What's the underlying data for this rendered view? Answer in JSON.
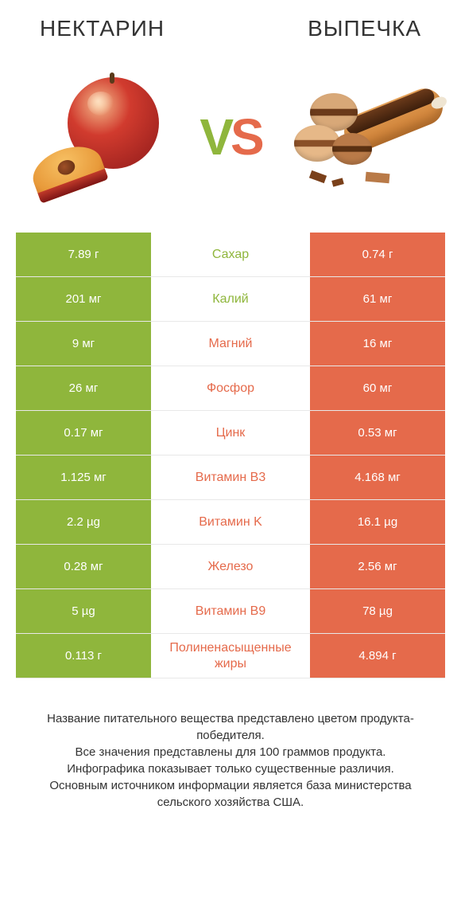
{
  "header": {
    "left_title": "НЕКТАРИН",
    "right_title": "ВЫПЕЧКА"
  },
  "vs_label": {
    "v": "V",
    "s": "S"
  },
  "colors": {
    "left_win": "#8fb63c",
    "right_win": "#e56a4b",
    "text_dark": "#333333",
    "background": "#ffffff",
    "row_border": "#e8e8e8"
  },
  "table": {
    "type": "comparison-table",
    "rows": [
      {
        "nutrient": "Сахар",
        "left": "7.89 г",
        "right": "0.74 г",
        "winner": "left"
      },
      {
        "nutrient": "Калий",
        "left": "201 мг",
        "right": "61 мг",
        "winner": "left"
      },
      {
        "nutrient": "Магний",
        "left": "9 мг",
        "right": "16 мг",
        "winner": "right"
      },
      {
        "nutrient": "Фосфор",
        "left": "26 мг",
        "right": "60 мг",
        "winner": "right"
      },
      {
        "nutrient": "Цинк",
        "left": "0.17 мг",
        "right": "0.53 мг",
        "winner": "right"
      },
      {
        "nutrient": "Витамин B3",
        "left": "1.125 мг",
        "right": "4.168 мг",
        "winner": "right"
      },
      {
        "nutrient": "Витамин K",
        "left": "2.2 µg",
        "right": "16.1 µg",
        "winner": "right"
      },
      {
        "nutrient": "Железо",
        "left": "0.28 мг",
        "right": "2.56 мг",
        "winner": "right"
      },
      {
        "nutrient": "Витамин B9",
        "left": "5 µg",
        "right": "78 µg",
        "winner": "right"
      },
      {
        "nutrient": "Полиненасыщенные жиры",
        "left": "0.113 г",
        "right": "4.894 г",
        "winner": "right"
      }
    ]
  },
  "footer_text": "Название питательного вещества представлено цветом продукта-победителя.\nВсе значения представлены для 100 граммов продукта.\nИнфографика показывает только существенные различия.\nОсновным источником информации является база министерства сельского хозяйства США."
}
